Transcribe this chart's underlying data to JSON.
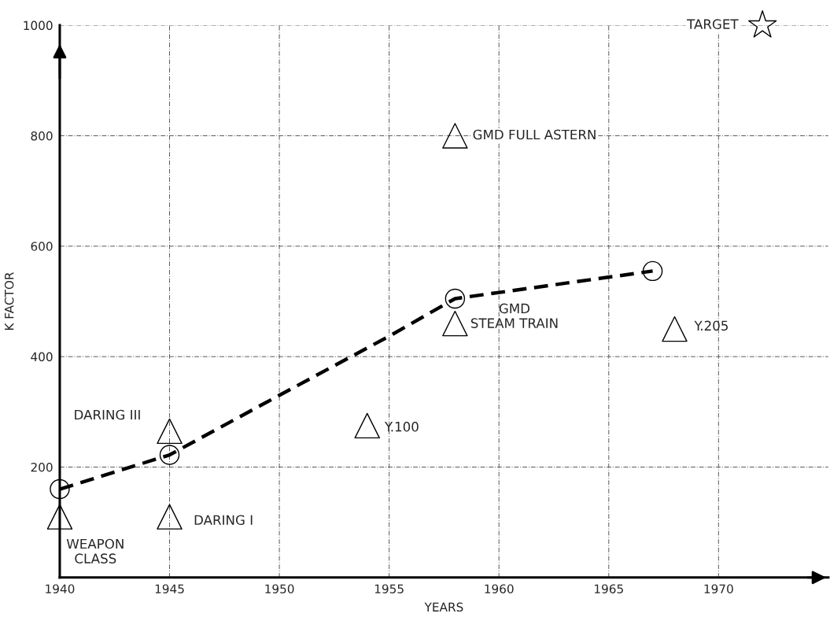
{
  "chart_data": {
    "type": "scatter",
    "xlabel": "YEARS",
    "ylabel": "K FACTOR",
    "xlim": [
      1940,
      1975
    ],
    "ylim": [
      0,
      1000
    ],
    "xticks": [
      1940,
      1945,
      1950,
      1955,
      1960,
      1965,
      1970
    ],
    "yticks": [
      {
        "value": 0,
        "label": null
      },
      200,
      400,
      600,
      800,
      1000
    ],
    "grid": true,
    "legend": false,
    "series": [
      {
        "type": "line",
        "color": "#000000",
        "marker": "none",
        "line_style": "dashed",
        "x": [
          1940,
          1945,
          1950,
          1955,
          1958,
          1967
        ],
        "values": [
          160,
          222,
          330,
          437,
          505,
          555
        ]
      },
      {
        "color": "#000000",
        "marker": "circle",
        "x": [
          1940,
          1945,
          1958,
          1967
        ],
        "values": [
          160,
          222,
          505,
          555
        ]
      },
      {
        "color": "#000000",
        "marker": "triangle",
        "x": [
          1940,
          1945,
          1945,
          1954,
          1958,
          1958,
          1968
        ],
        "values": [
          110,
          110,
          265,
          275,
          460,
          800,
          450
        ]
      },
      {
        "color": "#000000",
        "marker": "star",
        "x": [
          1972
        ],
        "values": [
          1000
        ]
      }
    ],
    "annotations": [
      {
        "text": "WEAPON\nCLASS",
        "x": 1940,
        "y": 110
      },
      {
        "text": "DARING I",
        "x": 1945,
        "y": 110
      },
      {
        "text": "DARING III",
        "x": 1945,
        "y": 265
      },
      {
        "text": "Y.100",
        "x": 1954,
        "y": 275
      },
      {
        "text": "GMD\nSTEAM TRAIN",
        "x": 1958,
        "y": 460
      },
      {
        "text": "GMD FULL ASTERN",
        "x": 1958,
        "y": 800
      },
      {
        "text": "Y.205",
        "x": 1968,
        "y": 450
      },
      {
        "text": "TARGET",
        "x": 1972,
        "y": 1000
      }
    ]
  }
}
